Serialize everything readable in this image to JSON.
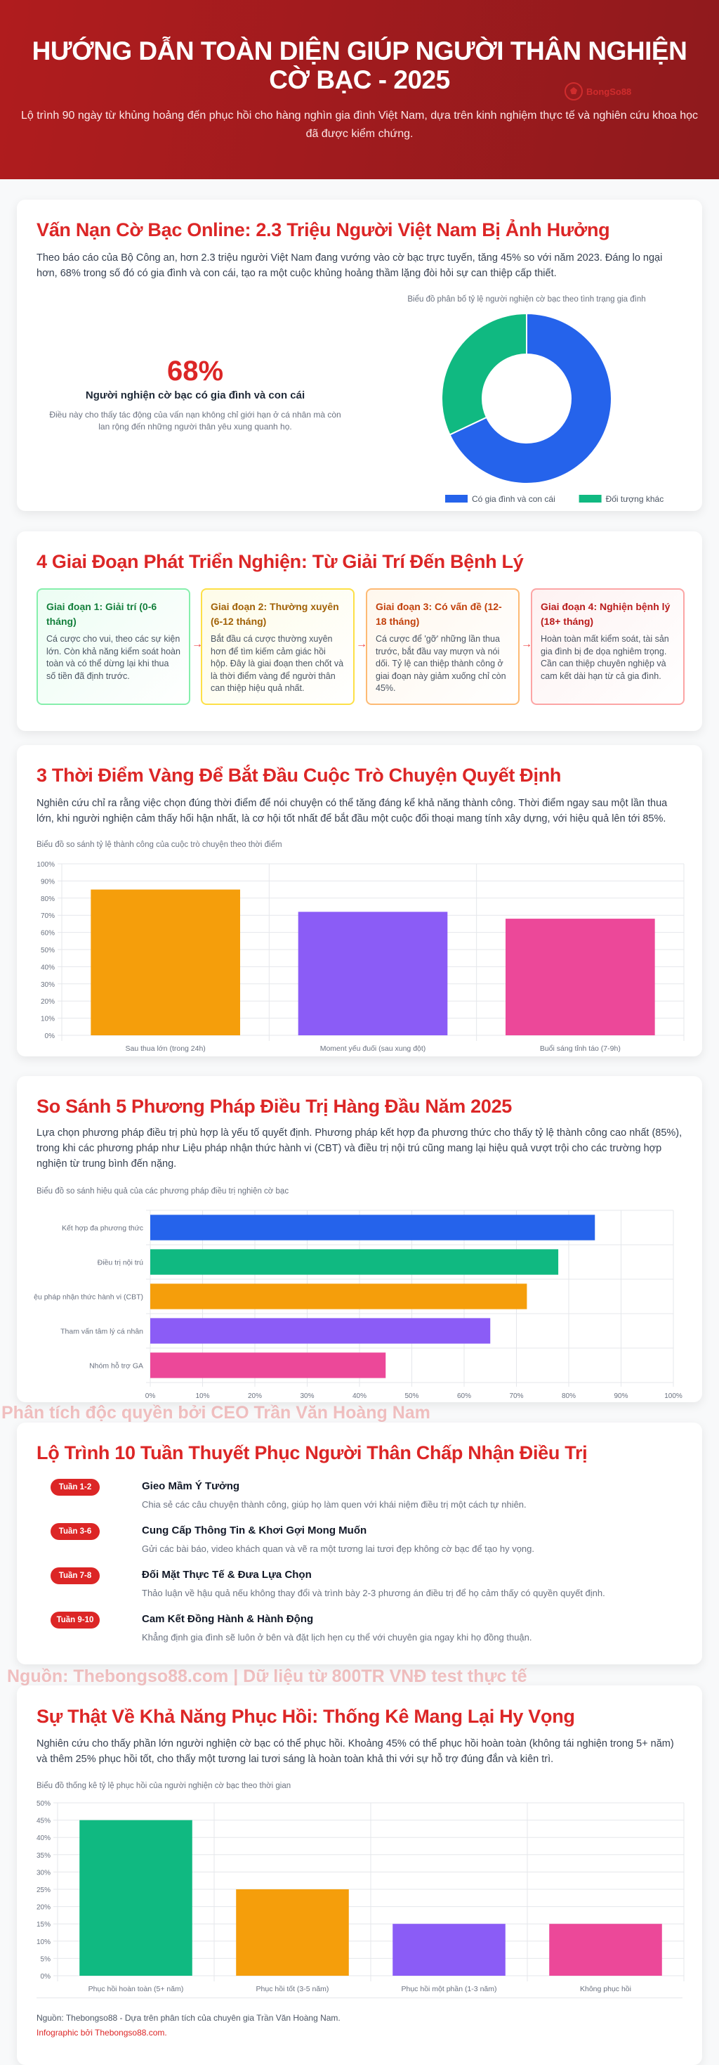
{
  "header": {
    "title_line1": "HƯỚNG DẪN TOÀN DIỆN GIÚP NGƯỜI THÂN NGHIỆN",
    "title_line2": "CỜ BẠC - 2025",
    "subtitle": "Lộ trình 90 ngày từ khủng hoảng đến phục hồi cho hàng nghìn gia đình Việt Nam, dựa trên kinh nghiệm thực tế và nghiên cứu khoa học đã được kiểm chứng.",
    "logo_text": "BongSo88"
  },
  "section1": {
    "title": "Vấn Nạn Cờ Bạc Online: 2.3 Triệu Người Việt Nam Bị Ảnh Hưởng",
    "paragraph": "Theo báo cáo của Bộ Công an, hơn 2.3 triệu người Việt Nam đang vướng vào cờ bạc trực tuyến, tăng 45% so với năm 2023. Đáng lo ngại hơn, 68% trong số đó có gia đình và con cái, tạo ra một cuộc khủng hoảng thầm lặng đòi hỏi sự can thiệp cấp thiết.",
    "stat_value": "68%",
    "stat_label": "Người nghiện cờ bạc có gia đình và con cái",
    "stat_desc": "Điều này cho thấy tác động của vấn nạn không chỉ giới hạn ở cá nhân mà còn lan rộng đến những người thân yêu xung quanh họ.",
    "chart_caption": "Biểu đồ phân bố tỷ lệ người nghiện cờ bạc theo tình trạng gia đình"
  },
  "section2": {
    "title": "4 Giai Đoạn Phát Triển Nghiện: Từ Giải Trí Đến Bệnh Lý",
    "stages": [
      {
        "title": "Giai đoạn 1: Giải trí (0-6 tháng)",
        "text": "Cá cược cho vui, theo các sự kiện lớn. Còn khả năng kiểm soát hoàn toàn và có thể dừng lại khi thua số tiền đã định trước.",
        "color": "#15803d",
        "bg": "#ecfdf3",
        "border": "#86efac"
      },
      {
        "title": "Giai đoạn 2: Thường xuyên (6-12 tháng)",
        "text": "Bắt đầu cá cược thường xuyên hơn để tìm kiếm cảm giác hồi hộp. Đây là giai đoạn then chốt và là thời điểm vàng để người thân can thiệp hiệu quả nhất.",
        "color": "#a16207",
        "bg": "#fefce8",
        "border": "#fde047"
      },
      {
        "title": "Giai đoạn 3: Có vấn đề (12-18 tháng)",
        "text": "Cá cược để 'gỡ' những lần thua trước, bắt đầu vay mượn và nói dối. Tỷ lệ can thiệp thành công ở giai đoạn này giảm xuống chỉ còn 45%.",
        "color": "#c2410c",
        "bg": "#fff7ed",
        "border": "#fdba74"
      },
      {
        "title": "Giai đoạn 4: Nghiện bệnh lý (18+ tháng)",
        "text": "Hoàn toàn mất kiểm soát, tài sản gia đình bị đe dọa nghiêm trọng. Cần can thiệp chuyên nghiệp và cam kết dài hạn từ cả gia đình.",
        "color": "#b91c1c",
        "bg": "#fef2f2",
        "border": "#fca5a5"
      }
    ],
    "arrow": "→"
  },
  "section3": {
    "title": "3 Thời Điểm Vàng Để Bắt Đầu Cuộc Trò Chuyện Quyết Định",
    "paragraph": "Nghiên cứu chỉ ra rằng việc chọn đúng thời điểm để nói chuyện có thể tăng đáng kể khả năng thành công. Thời điểm ngay sau một lần thua lớn, khi người nghiện cảm thấy hối hận nhất, là cơ hội tốt nhất để bắt đầu một cuộc đối thoại mang tính xây dựng, với hiệu quả lên tới 85%.",
    "chart_caption": "Biểu đồ so sánh tỷ lệ thành công của cuộc trò chuyện theo thời điểm"
  },
  "section4": {
    "title": "So Sánh 5 Phương Pháp Điều Trị Hàng Đầu Năm 2025",
    "paragraph": "Lựa chọn phương pháp điều trị phù hợp là yếu tố quyết định. Phương pháp kết hợp đa phương thức cho thấy tỷ lệ thành công cao nhất (85%), trong khi các phương pháp như Liệu pháp nhận thức hành vi (CBT) và điều trị nội trú cũng mang lại hiệu quả vượt trội cho các trường hợp nghiện từ trung bình đến nặng.",
    "chart_caption": "Biểu đồ so sánh hiệu quả của các phương pháp điều trị nghiện cờ bạc"
  },
  "watermark1": "Phân tích độc quyền bởi CEO Trần Văn Hoàng Nam",
  "section5": {
    "title": "Lộ Trình 10 Tuần Thuyết Phục Người Thân Chấp Nhận Điều Trị",
    "steps": [
      {
        "badge": "Tuần 1-2",
        "title": "Gieo Mầm Ý Tưởng",
        "desc": "Chia sẻ các câu chuyện thành công, giúp họ làm quen với khái niệm điều trị một cách tự nhiên."
      },
      {
        "badge": "Tuần 3-6",
        "title": "Cung Cấp Thông Tin & Khơi Gợi Mong Muốn",
        "desc": "Gửi các bài báo, video khách quan và vẽ ra một tương lai tươi đẹp không cờ bạc để tạo hy vọng."
      },
      {
        "badge": "Tuần 7-8",
        "title": "Đối Mặt Thực Tế & Đưa Lựa Chọn",
        "desc": "Thảo luận về hậu quả nếu không thay đổi và trình bày 2-3 phương án điều trị để họ cảm thấy có quyền quyết định."
      },
      {
        "badge": "Tuần 9-10",
        "title": "Cam Kết Đồng Hành & Hành Động",
        "desc": "Khẳng định gia đình sẽ luôn ở bên và đặt lịch hẹn cụ thể với chuyên gia ngay khi họ đồng thuận."
      }
    ]
  },
  "watermark2": "Nguồn: Thebongso88.com | Dữ liệu từ 800TR VNĐ test thực tế",
  "section6": {
    "title": "Sự Thật Về Khả Năng Phục Hồi: Thống Kê Mang Lại Hy Vọng",
    "paragraph": "Nghiên cứu cho thấy phần lớn người nghiện cờ bạc có thể phục hồi. Khoảng 45% có thể phục hồi hoàn toàn (không tái nghiện trong 5+ năm) và thêm 25% phục hồi tốt, cho thấy một tương lai tươi sáng là hoàn toàn khả thi với sự hỗ trợ đúng đắn và kiên trì.",
    "chart_caption": "Biểu đồ thống kê tỷ lệ phục hồi của người nghiện cờ bạc theo thời gian",
    "source": "Nguồn: Thebongso88 - Dựa trên phân tích của chuyên gia Trần Văn Hoàng Nam.",
    "credit": "Infographic bởi Thebongso88.com."
  },
  "chart_data": [
    {
      "type": "pie",
      "donut": true,
      "categories": [
        "Có gia đình và con cái",
        "Đối tượng khác"
      ],
      "values": [
        68,
        32
      ],
      "colors": [
        "#2563eb",
        "#10b981"
      ],
      "legend": "bottom"
    },
    {
      "type": "bar",
      "categories": [
        "Sau thua lớn (trong 24h)",
        "Moment yếu đuối (sau xung đột)",
        "Buổi sáng tỉnh táo (7-9h)"
      ],
      "values": [
        85,
        72,
        68
      ],
      "colors": [
        "#f59e0b",
        "#8b5cf6",
        "#ec4899"
      ],
      "ylim": [
        0,
        100
      ],
      "yticks": [
        "0%",
        "10%",
        "20%",
        "30%",
        "40%",
        "50%",
        "60%",
        "70%",
        "80%",
        "90%",
        "100%"
      ],
      "grid": true
    },
    {
      "type": "bar",
      "orientation": "horizontal",
      "categories": [
        "Kết hợp đa phương thức",
        "Điều trị nội trú",
        "ệu pháp nhận thức hành vi (CBT)",
        "Tham vấn tâm lý cá nhân",
        "Nhóm hỗ trợ GA"
      ],
      "values": [
        85,
        78,
        72,
        65,
        45
      ],
      "colors": [
        "#2563eb",
        "#10b981",
        "#f59e0b",
        "#8b5cf6",
        "#ec4899"
      ],
      "xlim": [
        0,
        100
      ],
      "xticks": [
        "0%",
        "10%",
        "20%",
        "30%",
        "40%",
        "50%",
        "60%",
        "70%",
        "80%",
        "90%",
        "100%"
      ],
      "grid": true
    },
    {
      "type": "bar",
      "categories": [
        "Phục hồi hoàn toàn (5+ năm)",
        "Phục hồi tốt (3-5 năm)",
        "Phục hồi một phần (1-3 năm)",
        "Không phục hồi"
      ],
      "values": [
        45,
        25,
        15,
        15
      ],
      "colors": [
        "#10b981",
        "#f59e0b",
        "#8b5cf6",
        "#ec4899"
      ],
      "ylim": [
        0,
        50
      ],
      "yticks": [
        "0%",
        "5%",
        "10%",
        "15%",
        "20%",
        "25%",
        "30%",
        "35%",
        "40%",
        "45%",
        "50%"
      ],
      "grid": true
    }
  ]
}
